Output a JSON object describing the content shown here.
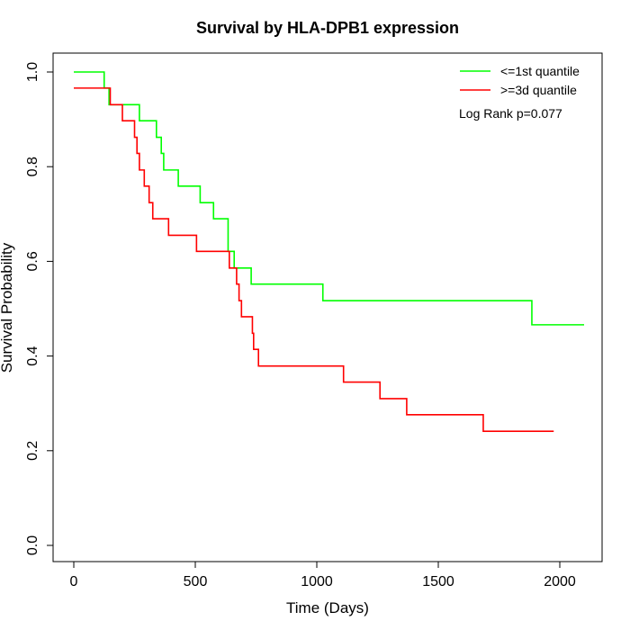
{
  "chart_data": {
    "type": "line",
    "step": true,
    "title": "Survival by HLA-DPB1 expression",
    "xlabel": "Time (Days)",
    "ylabel": "Survival Probability",
    "xlim": [
      0,
      2100
    ],
    "ylim": [
      0,
      1
    ],
    "xticks": [
      0,
      500,
      1000,
      1500,
      2000
    ],
    "yticks": [
      0.0,
      0.2,
      0.4,
      0.6,
      0.8,
      1.0
    ],
    "ytick_labels": [
      "0.0",
      "0.2",
      "0.4",
      "0.6",
      "0.8",
      "1.0"
    ],
    "grid": false,
    "legend_position": "top-right",
    "annotation": "Log Rank p=0.077",
    "series": [
      {
        "name": "<=1st quantile",
        "color": "#00ff00",
        "x": [
          0,
          125,
          145,
          270,
          340,
          360,
          370,
          430,
          520,
          575,
          635,
          660,
          730,
          1025,
          1885,
          2100
        ],
        "y": [
          1.0,
          0.966,
          0.931,
          0.897,
          0.862,
          0.828,
          0.793,
          0.759,
          0.724,
          0.69,
          0.621,
          0.586,
          0.552,
          0.517,
          0.466,
          0.466
        ]
      },
      {
        "name": ">=3d quantile",
        "color": "#ff0000",
        "x": [
          0,
          150,
          200,
          250,
          260,
          270,
          290,
          310,
          325,
          335,
          390,
          505,
          640,
          670,
          680,
          690,
          735,
          740,
          760,
          1110,
          1260,
          1370,
          1685,
          1975
        ],
        "y": [
          0.966,
          0.931,
          0.897,
          0.862,
          0.828,
          0.793,
          0.759,
          0.724,
          0.69,
          0.69,
          0.655,
          0.621,
          0.586,
          0.552,
          0.517,
          0.483,
          0.448,
          0.414,
          0.379,
          0.345,
          0.31,
          0.276,
          0.241,
          0.241
        ]
      }
    ]
  }
}
